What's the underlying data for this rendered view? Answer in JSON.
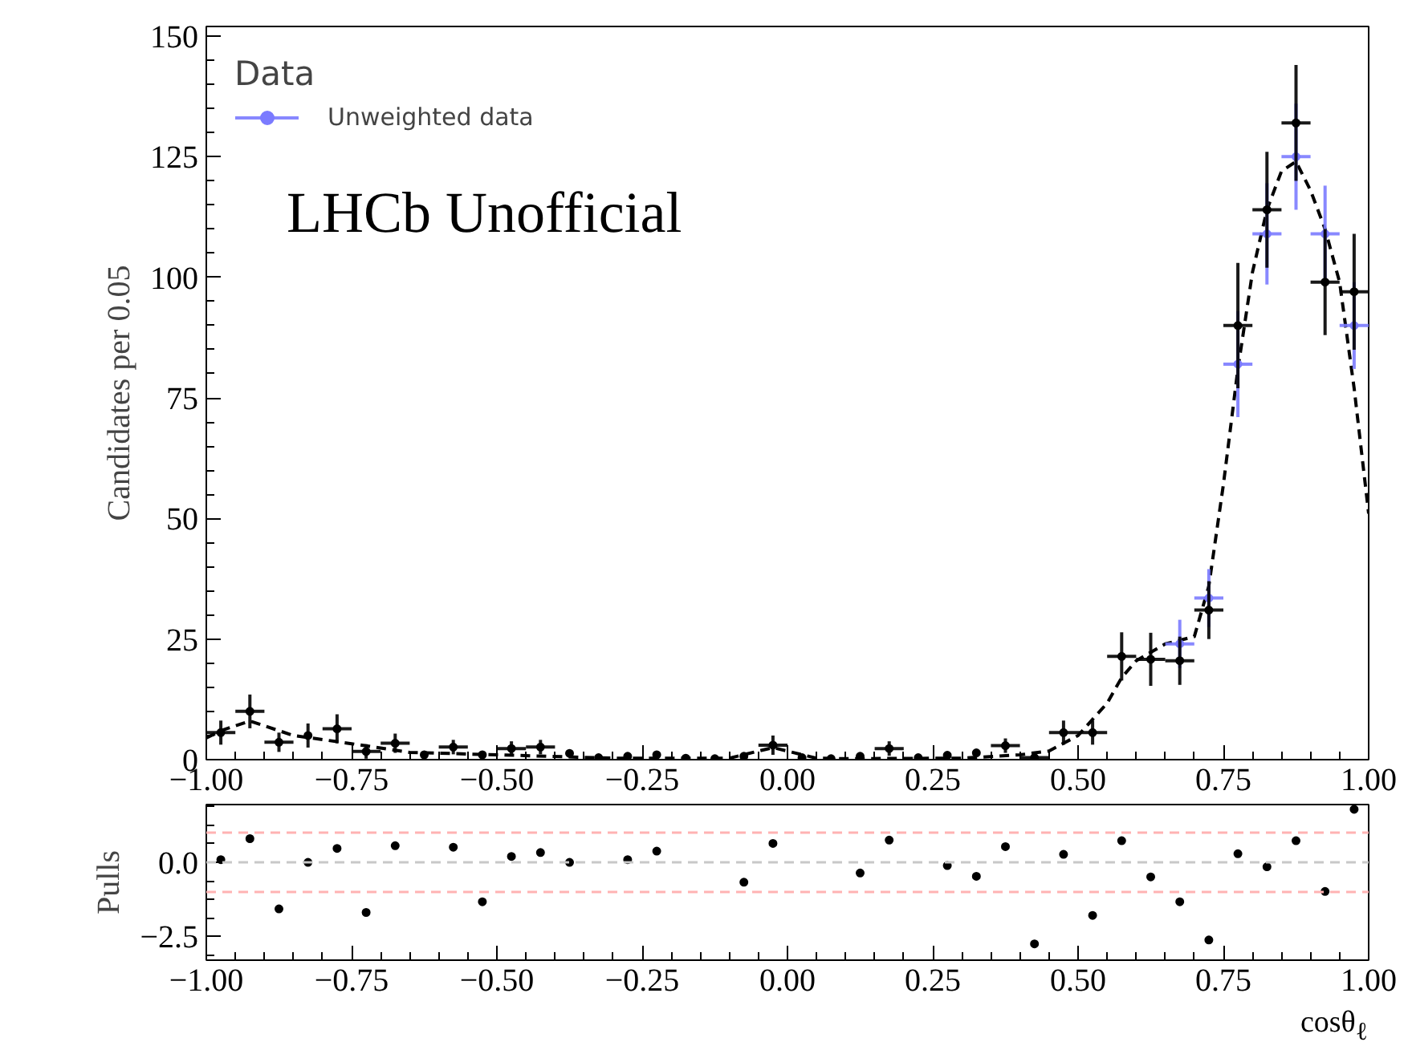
{
  "chart_data": [
    {
      "type": "scatter",
      "ylabel": "Candidates per 0.05",
      "legend_title": "Data",
      "legend": "top left",
      "annotations": [
        "LHCb Unofficial"
      ],
      "x": [
        -0.975,
        -0.925,
        -0.875,
        -0.825,
        -0.775,
        -0.725,
        -0.675,
        -0.625,
        -0.575,
        -0.525,
        -0.475,
        -0.425,
        -0.375,
        -0.325,
        -0.275,
        -0.225,
        -0.175,
        -0.125,
        -0.075,
        -0.025,
        0.025,
        0.075,
        0.125,
        0.175,
        0.225,
        0.275,
        0.325,
        0.375,
        0.425,
        0.475,
        0.525,
        0.575,
        0.625,
        0.675,
        0.725,
        0.775,
        0.825,
        0.875,
        0.925,
        0.975
      ],
      "xlim": [
        -1,
        1
      ],
      "ylim": [
        0,
        152
      ],
      "xticks": [
        {
          "value": -1,
          "label": "−1.00"
        },
        {
          "value": -0.75,
          "label": "−0.75"
        },
        {
          "value": -0.5,
          "label": "−0.50"
        },
        {
          "value": -0.25,
          "label": "−0.25"
        },
        {
          "value": 0,
          "label": "0.00"
        },
        {
          "value": 0.25,
          "label": "0.25"
        },
        {
          "value": 0.5,
          "label": "0.50"
        },
        {
          "value": 0.75,
          "label": "0.75"
        },
        {
          "value": 1,
          "label": "1.00"
        }
      ],
      "yticks": [
        0,
        25,
        50,
        75,
        100,
        125,
        150
      ],
      "grid": false,
      "marker": "circle",
      "series": [
        {
          "name": "Unweighted data",
          "color": "#7b7bff",
          "values": [
            null,
            null,
            null,
            null,
            null,
            null,
            null,
            null,
            null,
            null,
            null,
            null,
            null,
            null,
            null,
            null,
            null,
            null,
            null,
            null,
            null,
            null,
            null,
            null,
            null,
            null,
            null,
            null,
            null,
            null,
            null,
            null,
            null,
            24,
            33.5,
            82,
            109,
            125,
            109,
            90
          ],
          "xerrors": [
            null,
            null,
            null,
            null,
            null,
            null,
            null,
            null,
            null,
            null,
            null,
            null,
            null,
            null,
            null,
            null,
            null,
            null,
            null,
            null,
            null,
            null,
            null,
            null,
            null,
            null,
            null,
            null,
            null,
            null,
            null,
            null,
            null,
            0.025,
            0.025,
            0.025,
            0.025,
            0.025,
            0.025,
            0.025
          ],
          "errors": [
            null,
            null,
            null,
            null,
            null,
            null,
            null,
            null,
            null,
            null,
            null,
            null,
            null,
            null,
            null,
            null,
            null,
            null,
            null,
            null,
            null,
            null,
            null,
            null,
            null,
            null,
            null,
            null,
            null,
            null,
            null,
            null,
            null,
            5,
            6,
            11,
            10.5,
            11,
            10,
            9
          ]
        },
        {
          "color": "#000000",
          "values": [
            5.6,
            10,
            3.6,
            5,
            6.4,
            1.7,
            3.4,
            1,
            2.6,
            1,
            2.3,
            2.6,
            1.3,
            0.4,
            0.7,
            1,
            0.3,
            0.2,
            0.7,
            3,
            0.4,
            0.2,
            0.7,
            2.3,
            0.4,
            0.9,
            1.4,
            2.9,
            0.4,
            5.6,
            5.6,
            21.4,
            20.8,
            20.5,
            31,
            90,
            114,
            132,
            99,
            97
          ],
          "xerrors": [
            0.025,
            0.025,
            0.025,
            null,
            0.025,
            0.025,
            0.025,
            null,
            0.025,
            null,
            0.025,
            0.025,
            null,
            null,
            null,
            null,
            null,
            null,
            null,
            0.025,
            null,
            null,
            null,
            0.025,
            null,
            null,
            null,
            0.025,
            0.025,
            0.025,
            0.025,
            0.025,
            0.025,
            0.025,
            0.025,
            0.025,
            0.025,
            0.025,
            0.025,
            0.025
          ],
          "errors": [
            2.5,
            3.5,
            2,
            2.5,
            3,
            1.5,
            2,
            null,
            1.5,
            null,
            1.5,
            1.5,
            null,
            null,
            null,
            null,
            null,
            null,
            null,
            2,
            null,
            null,
            null,
            1.5,
            null,
            null,
            null,
            1.5,
            null,
            2.5,
            2.5,
            5,
            5.5,
            5,
            6,
            13,
            12,
            12,
            11,
            12
          ]
        },
        {
          "type": "line",
          "color": "#000000",
          "line_style": "dashed",
          "marker": "none",
          "x": [
            -1,
            -0.975,
            -0.925,
            -0.85,
            -0.75,
            -0.65,
            -0.5,
            -0.3,
            -0.1,
            -0.025,
            0.05,
            0.1,
            0.3,
            0.4,
            0.45,
            0.5,
            0.55,
            0.575,
            0.6,
            0.65,
            0.7,
            0.725,
            0.75,
            0.775,
            0.8,
            0.825,
            0.85,
            0.875,
            0.9,
            0.925,
            0.95,
            0.975,
            1
          ],
          "values": [
            4.5,
            6,
            8,
            5,
            3.3,
            1.5,
            1,
            0.3,
            0.3,
            2.5,
            0.3,
            0.2,
            0.3,
            1,
            1.8,
            5,
            11.7,
            17,
            20.5,
            24,
            25.5,
            36,
            57,
            81,
            101,
            114,
            122,
            124,
            118,
            110,
            99,
            77,
            51
          ]
        }
      ]
    },
    {
      "type": "scatter",
      "ylabel": "Pulls",
      "xlabel": "cosθ$_{ℓ}$",
      "marker": "circle",
      "grid": false,
      "x": [
        -0.975,
        -0.925,
        -0.875,
        -0.825,
        -0.775,
        -0.725,
        -0.675,
        -0.625,
        -0.575,
        -0.525,
        -0.475,
        -0.425,
        -0.375,
        -0.325,
        -0.275,
        -0.225,
        -0.175,
        -0.125,
        -0.075,
        -0.025,
        0.025,
        0.075,
        0.125,
        0.175,
        0.225,
        0.275,
        0.325,
        0.375,
        0.425,
        0.475,
        0.525,
        0.575,
        0.625,
        0.675,
        0.725,
        0.775,
        0.825,
        0.875,
        0.925,
        0.975
      ],
      "xlim": [
        -1,
        1
      ],
      "ylim": [
        -3.3,
        1.95
      ],
      "xticks": [
        {
          "value": -1,
          "label": "−1.00"
        },
        {
          "value": -0.75,
          "label": "−0.75"
        },
        {
          "value": -0.5,
          "label": "−0.50"
        },
        {
          "value": -0.25,
          "label": "−0.25"
        },
        {
          "value": 0,
          "label": "0.00"
        },
        {
          "value": 0.25,
          "label": "0.25"
        },
        {
          "value": 0.5,
          "label": "0.50"
        },
        {
          "value": 0.75,
          "label": "0.75"
        },
        {
          "value": 1,
          "label": "1.00"
        }
      ],
      "yticks": [
        {
          "value": -2.5,
          "label": "−2.5"
        },
        {
          "value": 0,
          "label": "0.0"
        }
      ],
      "ref_lines": [
        {
          "axis": "y",
          "value": 0,
          "color": "#c8c8c8",
          "line_style": "dashed"
        },
        {
          "axis": "y",
          "value": 1,
          "color": "#ffb3b3",
          "line_style": "dashed"
        },
        {
          "axis": "y",
          "value": -1,
          "color": "#ffb3b3",
          "line_style": "dashed"
        }
      ],
      "series": [
        {
          "color": "#000000",
          "values": [
            0.09,
            0.8,
            -1.57,
            0,
            0.47,
            -1.69,
            0.56,
            null,
            0.51,
            -1.33,
            0.2,
            0.33,
            0,
            null,
            0.09,
            0.38,
            null,
            null,
            -0.67,
            0.64,
            null,
            null,
            -0.36,
            0.75,
            null,
            -0.11,
            -0.47,
            0.53,
            -2.75,
            0.27,
            -1.79,
            0.73,
            -0.49,
            -1.33,
            -2.62,
            0.29,
            -0.15,
            0.73,
            -0.98,
            1.79
          ]
        }
      ]
    }
  ]
}
